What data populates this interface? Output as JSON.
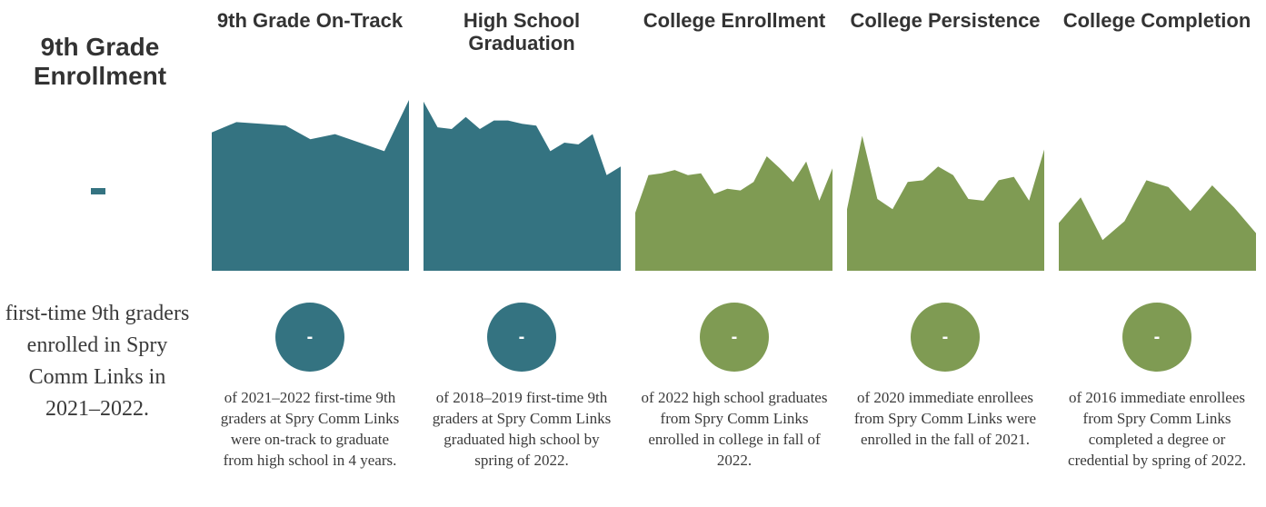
{
  "enrollment": {
    "title": "9th Grade Enrollment",
    "value": "-",
    "description": "first-time 9th graders enrolled in Spry Comm Links in 2021–2022."
  },
  "colors": {
    "teal": "#347381",
    "green": "#7f9b53"
  },
  "stages": [
    {
      "title": "9th Grade On-Track",
      "value": "-",
      "description": "of 2021–2022 first-time 9th graders at Spry Comm Links were on-track to graduate from high school in 4 years.",
      "color": "teal"
    },
    {
      "title": "High School Graduation",
      "value": "-",
      "description": "of 2018–2019 first-time 9th graders at Spry Comm Links graduated high school by spring of 2022.",
      "color": "teal"
    },
    {
      "title": "College Enrollment",
      "value": "-",
      "description": "of 2022 high school graduates from Spry Comm Links enrolled in college in fall of 2022.",
      "color": "green"
    },
    {
      "title": "College Persistence",
      "value": "-",
      "description": "of 2020 immediate enrollees from Spry Comm Links were enrolled in the fall of 2021.",
      "color": "green"
    },
    {
      "title": "College Completion",
      "value": "-",
      "description": "of 2016 immediate enrollees from Spry Comm Links completed a degree or credential by spring of 2022.",
      "color": "green"
    }
  ],
  "chart_data": [
    {
      "type": "area",
      "name": "9th Grade On-Track",
      "ylim": [
        0,
        1
      ],
      "values": [
        0.81,
        0.87,
        0.86,
        0.85,
        0.77,
        0.8,
        0.75,
        0.7,
        1.0
      ]
    },
    {
      "type": "area",
      "name": "High School Graduation",
      "ylim": [
        0,
        1
      ],
      "values": [
        0.99,
        0.84,
        0.83,
        0.9,
        0.83,
        0.88,
        0.88,
        0.86,
        0.85,
        0.7,
        0.75,
        0.74,
        0.8,
        0.56,
        0.61
      ]
    },
    {
      "type": "area",
      "name": "College Enrollment",
      "ylim": [
        0,
        1
      ],
      "values": [
        0.34,
        0.56,
        0.57,
        0.59,
        0.56,
        0.57,
        0.45,
        0.48,
        0.47,
        0.52,
        0.67,
        0.6,
        0.52,
        0.64,
        0.41,
        0.6
      ]
    },
    {
      "type": "area",
      "name": "College Persistence",
      "ylim": [
        0,
        1
      ],
      "values": [
        0.36,
        0.79,
        0.42,
        0.36,
        0.52,
        0.53,
        0.61,
        0.56,
        0.42,
        0.41,
        0.53,
        0.55,
        0.41,
        0.71
      ]
    },
    {
      "type": "area",
      "name": "College Completion",
      "ylim": [
        0,
        1
      ],
      "values": [
        0.28,
        0.43,
        0.18,
        0.29,
        0.53,
        0.49,
        0.35,
        0.5,
        0.37,
        0.22
      ]
    }
  ]
}
